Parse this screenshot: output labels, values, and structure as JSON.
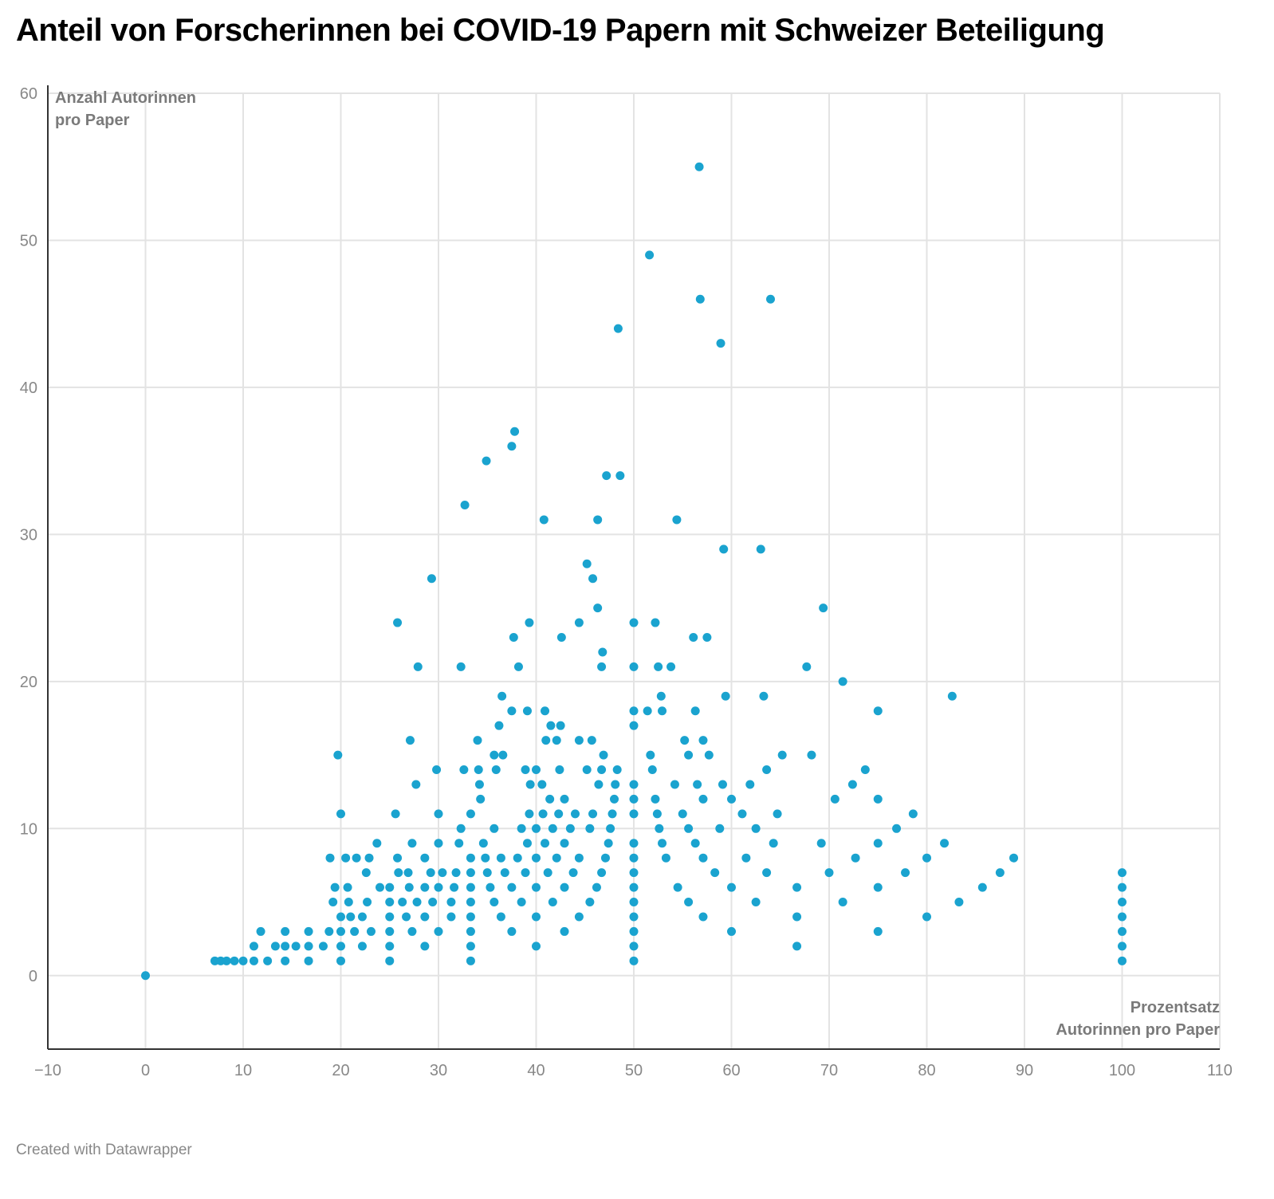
{
  "title": "Anteil von Forscherinnen bei COVID-19 Papern mit Schweizer Beteiligung",
  "footer": "Created with Datawrapper",
  "colors": {
    "point": "#1aa3cf",
    "grid": "#e3e3e3",
    "axis": "#333333",
    "text": "#888888"
  },
  "chart_data": {
    "type": "scatter",
    "title": "Anteil von Forscherinnen bei COVID-19 Papern mit Schweizer Beteiligung",
    "xlabel": [
      "Prozentsatz",
      "Autorinnen pro Paper"
    ],
    "ylabel": [
      "Anzahl Autorinnen",
      "pro Paper"
    ],
    "xlim": [
      -10,
      110
    ],
    "ylim": [
      -5,
      60
    ],
    "xticks": [
      -10,
      0,
      10,
      20,
      30,
      40,
      50,
      60,
      70,
      80,
      90,
      100,
      110
    ],
    "xtick_labels": [
      "−10",
      "0",
      "10",
      "20",
      "30",
      "40",
      "50",
      "60",
      "70",
      "80",
      "90",
      "100",
      "110"
    ],
    "yticks": [
      0,
      10,
      20,
      30,
      40,
      50,
      60
    ],
    "ytick_labels": [
      "0",
      "10",
      "20",
      "30",
      "40",
      "50",
      "60"
    ],
    "grid": true,
    "points": [
      [
        0,
        0
      ],
      [
        7.1,
        1
      ],
      [
        7.7,
        1
      ],
      [
        8.3,
        1
      ],
      [
        9.1,
        1
      ],
      [
        10,
        1
      ],
      [
        11.1,
        1
      ],
      [
        12.5,
        1
      ],
      [
        14.3,
        1
      ],
      [
        16.7,
        1
      ],
      [
        20,
        1
      ],
      [
        25,
        1
      ],
      [
        33.3,
        1
      ],
      [
        50,
        1
      ],
      [
        100,
        1
      ],
      [
        11.1,
        2
      ],
      [
        13.3,
        2
      ],
      [
        14.3,
        2
      ],
      [
        15.4,
        2
      ],
      [
        16.7,
        2
      ],
      [
        18.2,
        2
      ],
      [
        20,
        2
      ],
      [
        22.2,
        2
      ],
      [
        25,
        2
      ],
      [
        28.6,
        2
      ],
      [
        33.3,
        2
      ],
      [
        40,
        2
      ],
      [
        50,
        2
      ],
      [
        66.7,
        2
      ],
      [
        100,
        2
      ],
      [
        11.8,
        3
      ],
      [
        14.3,
        3
      ],
      [
        16.7,
        3
      ],
      [
        18.8,
        3
      ],
      [
        20,
        3
      ],
      [
        21.4,
        3
      ],
      [
        23.1,
        3
      ],
      [
        25,
        3
      ],
      [
        27.3,
        3
      ],
      [
        30,
        3
      ],
      [
        33.3,
        3
      ],
      [
        37.5,
        3
      ],
      [
        42.9,
        3
      ],
      [
        50,
        3
      ],
      [
        60,
        3
      ],
      [
        75,
        3
      ],
      [
        100,
        3
      ],
      [
        20,
        4
      ],
      [
        21,
        4
      ],
      [
        22.2,
        4
      ],
      [
        25,
        4
      ],
      [
        26.7,
        4
      ],
      [
        28.6,
        4
      ],
      [
        31.3,
        4
      ],
      [
        33.3,
        4
      ],
      [
        36.4,
        4
      ],
      [
        40,
        4
      ],
      [
        44.4,
        4
      ],
      [
        50,
        4
      ],
      [
        57.1,
        4
      ],
      [
        66.7,
        4
      ],
      [
        80,
        4
      ],
      [
        100,
        4
      ],
      [
        19.2,
        5
      ],
      [
        20.8,
        5
      ],
      [
        22.7,
        5
      ],
      [
        25,
        5
      ],
      [
        26.3,
        5
      ],
      [
        27.8,
        5
      ],
      [
        29.4,
        5
      ],
      [
        31.3,
        5
      ],
      [
        33.3,
        5
      ],
      [
        35.7,
        5
      ],
      [
        38.5,
        5
      ],
      [
        41.7,
        5
      ],
      [
        45.5,
        5
      ],
      [
        50,
        5
      ],
      [
        55.6,
        5
      ],
      [
        62.5,
        5
      ],
      [
        71.4,
        5
      ],
      [
        83.3,
        5
      ],
      [
        100,
        5
      ],
      [
        19.4,
        6
      ],
      [
        20.7,
        6
      ],
      [
        24,
        6
      ],
      [
        25,
        6
      ],
      [
        27,
        6
      ],
      [
        28.6,
        6
      ],
      [
        30,
        6
      ],
      [
        31.6,
        6
      ],
      [
        33.3,
        6
      ],
      [
        35.3,
        6
      ],
      [
        37.5,
        6
      ],
      [
        40,
        6
      ],
      [
        42.9,
        6
      ],
      [
        46.2,
        6
      ],
      [
        50,
        6
      ],
      [
        54.5,
        6
      ],
      [
        60,
        6
      ],
      [
        66.7,
        6
      ],
      [
        75,
        6
      ],
      [
        85.7,
        6
      ],
      [
        100,
        6
      ],
      [
        22.6,
        7
      ],
      [
        25.9,
        7
      ],
      [
        26.9,
        7
      ],
      [
        29.2,
        7
      ],
      [
        30.4,
        7
      ],
      [
        31.8,
        7
      ],
      [
        33.3,
        7
      ],
      [
        35,
        7
      ],
      [
        36.8,
        7
      ],
      [
        38.9,
        7
      ],
      [
        41.2,
        7
      ],
      [
        43.8,
        7
      ],
      [
        46.7,
        7
      ],
      [
        50,
        7
      ],
      [
        58.3,
        7
      ],
      [
        63.6,
        7
      ],
      [
        70,
        7
      ],
      [
        77.8,
        7
      ],
      [
        87.5,
        7
      ],
      [
        100,
        7
      ],
      [
        18.9,
        8
      ],
      [
        20.5,
        8
      ],
      [
        21.6,
        8
      ],
      [
        22.9,
        8
      ],
      [
        25.8,
        8
      ],
      [
        28.6,
        8
      ],
      [
        33.3,
        8
      ],
      [
        34.8,
        8
      ],
      [
        36.4,
        8
      ],
      [
        38.1,
        8
      ],
      [
        40,
        8
      ],
      [
        42.1,
        8
      ],
      [
        44.4,
        8
      ],
      [
        47.1,
        8
      ],
      [
        50,
        8
      ],
      [
        53.3,
        8
      ],
      [
        57.1,
        8
      ],
      [
        61.5,
        8
      ],
      [
        72.7,
        8
      ],
      [
        80,
        8
      ],
      [
        88.9,
        8
      ],
      [
        23.7,
        9
      ],
      [
        27.3,
        9
      ],
      [
        30,
        9
      ],
      [
        32.1,
        9
      ],
      [
        34.6,
        9
      ],
      [
        39.1,
        9
      ],
      [
        40.9,
        9
      ],
      [
        42.9,
        9
      ],
      [
        47.4,
        9
      ],
      [
        50,
        9
      ],
      [
        52.9,
        9
      ],
      [
        56.3,
        9
      ],
      [
        64.3,
        9
      ],
      [
        69.2,
        9
      ],
      [
        75,
        9
      ],
      [
        81.8,
        9
      ],
      [
        32.3,
        10
      ],
      [
        35.7,
        10
      ],
      [
        38.5,
        10
      ],
      [
        40,
        10
      ],
      [
        41.7,
        10
      ],
      [
        43.5,
        10
      ],
      [
        45.5,
        10
      ],
      [
        47.6,
        10
      ],
      [
        52.6,
        10
      ],
      [
        55.6,
        10
      ],
      [
        58.8,
        10
      ],
      [
        62.5,
        10
      ],
      [
        76.9,
        10
      ],
      [
        20,
        11
      ],
      [
        25.6,
        11
      ],
      [
        30,
        11
      ],
      [
        33.3,
        11
      ],
      [
        39.3,
        11
      ],
      [
        40.7,
        11
      ],
      [
        42.3,
        11
      ],
      [
        44,
        11
      ],
      [
        45.8,
        11
      ],
      [
        47.8,
        11
      ],
      [
        50,
        11
      ],
      [
        52.4,
        11
      ],
      [
        55,
        11
      ],
      [
        61.1,
        11
      ],
      [
        64.7,
        11
      ],
      [
        78.6,
        11
      ],
      [
        34.3,
        12
      ],
      [
        41.4,
        12
      ],
      [
        42.9,
        12
      ],
      [
        48,
        12
      ],
      [
        50,
        12
      ],
      [
        52.2,
        12
      ],
      [
        57.1,
        12
      ],
      [
        60,
        12
      ],
      [
        70.6,
        12
      ],
      [
        75,
        12
      ],
      [
        27.7,
        13
      ],
      [
        34.2,
        13
      ],
      [
        39.4,
        13
      ],
      [
        40.6,
        13
      ],
      [
        46.4,
        13
      ],
      [
        48.1,
        13
      ],
      [
        50,
        13
      ],
      [
        54.2,
        13
      ],
      [
        56.5,
        13
      ],
      [
        59.1,
        13
      ],
      [
        61.9,
        13
      ],
      [
        72.4,
        13
      ],
      [
        29.8,
        14
      ],
      [
        32.6,
        14
      ],
      [
        34.1,
        14
      ],
      [
        35.9,
        14
      ],
      [
        38.9,
        14
      ],
      [
        40,
        14
      ],
      [
        42.4,
        14
      ],
      [
        45.2,
        14
      ],
      [
        46.7,
        14
      ],
      [
        48.3,
        14
      ],
      [
        51.9,
        14
      ],
      [
        63.6,
        14
      ],
      [
        73.7,
        14
      ],
      [
        19.7,
        15
      ],
      [
        35.7,
        15
      ],
      [
        36.6,
        15
      ],
      [
        46.9,
        15
      ],
      [
        51.7,
        15
      ],
      [
        55.6,
        15
      ],
      [
        57.7,
        15
      ],
      [
        65.2,
        15
      ],
      [
        68.2,
        15
      ],
      [
        27.1,
        16
      ],
      [
        34.0,
        16
      ],
      [
        41.0,
        16
      ],
      [
        42.1,
        16
      ],
      [
        44.4,
        16
      ],
      [
        45.7,
        16
      ],
      [
        55.2,
        16
      ],
      [
        57.1,
        16
      ],
      [
        36.2,
        17
      ],
      [
        41.5,
        17
      ],
      [
        42.5,
        17
      ],
      [
        50,
        17
      ],
      [
        37.5,
        18
      ],
      [
        39.1,
        18
      ],
      [
        40.9,
        18
      ],
      [
        50,
        18
      ],
      [
        51.4,
        18
      ],
      [
        52.9,
        18
      ],
      [
        56.3,
        18
      ],
      [
        75,
        18
      ],
      [
        36.5,
        19
      ],
      [
        52.8,
        19
      ],
      [
        59.4,
        19
      ],
      [
        63.3,
        19
      ],
      [
        82.6,
        19
      ],
      [
        71.4,
        20
      ],
      [
        27.9,
        21
      ],
      [
        32.3,
        21
      ],
      [
        38.2,
        21
      ],
      [
        46.7,
        21
      ],
      [
        50,
        21
      ],
      [
        52.5,
        21
      ],
      [
        53.8,
        21
      ],
      [
        67.7,
        21
      ],
      [
        46.8,
        22
      ],
      [
        37.7,
        23
      ],
      [
        42.6,
        23
      ],
      [
        56.1,
        23
      ],
      [
        57.5,
        23
      ],
      [
        25.8,
        24
      ],
      [
        39.3,
        24
      ],
      [
        44.4,
        24
      ],
      [
        50,
        24
      ],
      [
        52.2,
        24
      ],
      [
        46.3,
        25
      ],
      [
        69.4,
        25
      ],
      [
        45.8,
        27
      ],
      [
        29.3,
        27
      ],
      [
        45.2,
        28
      ],
      [
        59.2,
        29
      ],
      [
        63.0,
        29
      ],
      [
        40.8,
        31
      ],
      [
        46.3,
        31
      ],
      [
        54.4,
        31
      ],
      [
        32.7,
        32
      ],
      [
        47.2,
        34
      ],
      [
        48.6,
        34
      ],
      [
        34.9,
        35
      ],
      [
        37.5,
        36
      ],
      [
        37.8,
        37
      ],
      [
        48.4,
        44
      ],
      [
        58.9,
        43
      ],
      [
        56.8,
        46
      ],
      [
        64.0,
        46
      ],
      [
        51.6,
        49
      ],
      [
        56.7,
        55
      ]
    ]
  }
}
